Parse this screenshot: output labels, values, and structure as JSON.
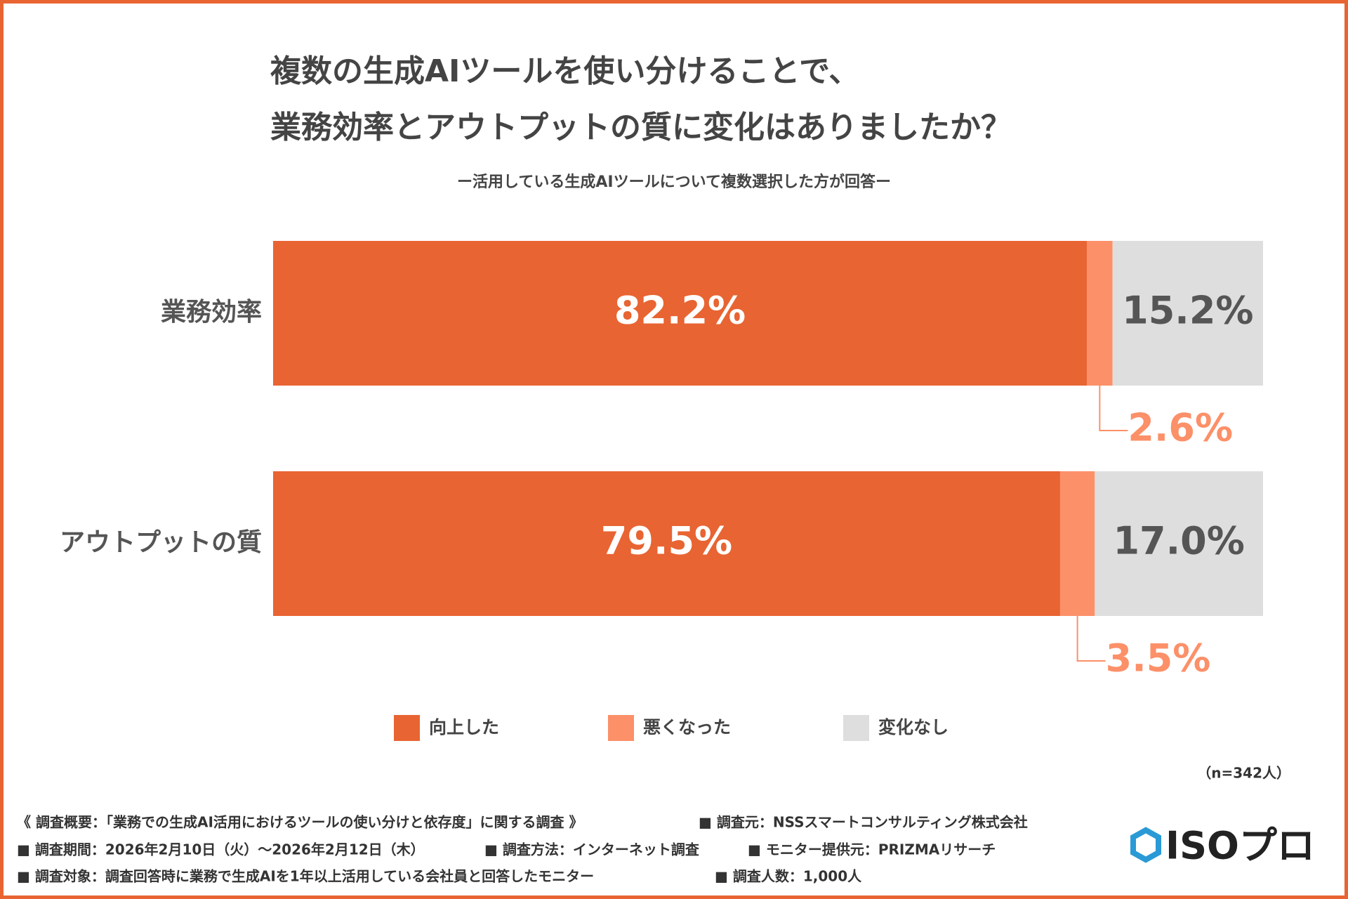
{
  "chart_data": {
    "type": "stacked_barh",
    "title": [
      "複数の生成AIツールを使い分けることで、",
      "業務効率とアウトプットの質に変化はありましたか？"
    ],
    "subtitle": "ー活用している生成AIツールについて複数選択した方が回答ー",
    "categories": [
      "業務効率",
      "アウトプットの質"
    ],
    "series": [
      {
        "name": "向上した",
        "color": "#e86432",
        "values": [
          82.2,
          79.5
        ],
        "value_labels": [
          "82.2%",
          "79.5%"
        ]
      },
      {
        "name": "悪くなった",
        "color": "#fc9068",
        "values": [
          2.6,
          3.5
        ],
        "value_labels": [
          "2.6%",
          "3.5%"
        ]
      },
      {
        "name": "変化なし",
        "color": "#dedede",
        "values": [
          15.2,
          17.0
        ],
        "value_labels": [
          "15.2%",
          "17.0%"
        ]
      }
    ],
    "xlim": [
      0,
      100
    ],
    "sample": "（n=342人）"
  },
  "footnotes": [
    [
      "《 調査概要：「業務での生成AI活用におけるツールの使い分けと依存度」に関する調査 》",
      "■ 調査元：NSSスマートコンサルティング株式会社"
    ],
    [
      "■ 調査期間：2026年2月10日（火）～2026年2月12日（木）",
      "■ 調査方法：インターネット調査",
      "■ モニター提供元：PRIZMAリサーチ"
    ],
    [
      "■ 調査対象：調査回答時に業務で生成AIを1年以上活用している会社員と回答したモニター",
      "■ 調査人数：1,000人"
    ]
  ],
  "logo": "ISOプロ"
}
